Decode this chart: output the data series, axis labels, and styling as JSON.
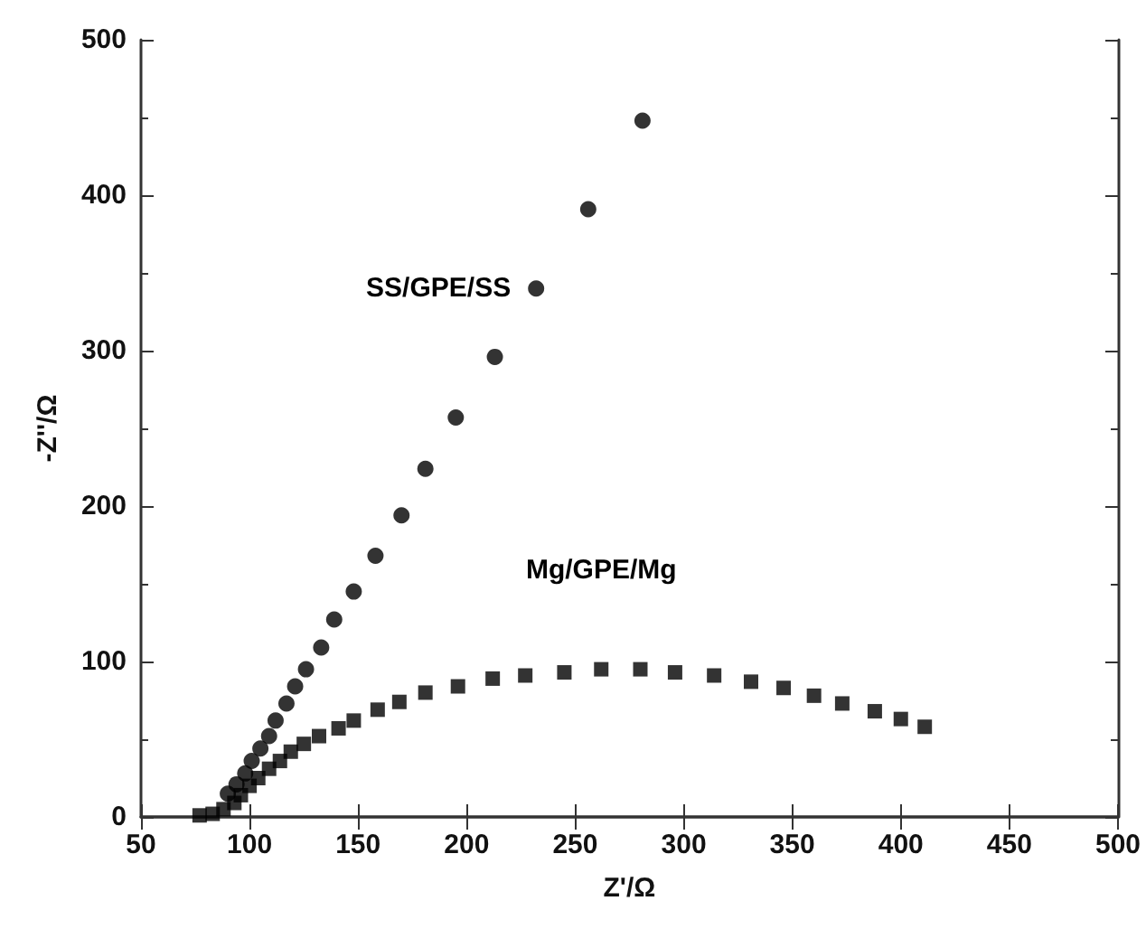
{
  "chart_data": {
    "type": "scatter",
    "xlabel": "Z'/Ω",
    "ylabel": "-Z''/Ω",
    "xlim": [
      50,
      500
    ],
    "xticks": [
      50,
      100,
      150,
      200,
      250,
      300,
      350,
      400,
      450,
      500
    ],
    "ylim": [
      0,
      500
    ],
    "yticks": [
      0,
      100,
      200,
      300,
      400,
      500
    ],
    "grid": false,
    "legend": false,
    "series": [
      {
        "name": "SS/GPE/SS",
        "color": "#000000",
        "marker": "circle",
        "x": [
          90,
          94,
          98,
          101,
          105,
          109,
          112,
          117,
          121,
          126,
          133,
          139,
          148,
          158,
          170,
          181,
          195,
          213,
          232,
          256,
          281
        ],
        "values": [
          15,
          21,
          28,
          36,
          44,
          52,
          62,
          73,
          84,
          95,
          109,
          127,
          145,
          168,
          194,
          224,
          257,
          296,
          340,
          391,
          448
        ]
      },
      {
        "name": "Mg/GPE/Mg",
        "color": "#000000",
        "marker": "square",
        "x": [
          77,
          83,
          88,
          93,
          96,
          100,
          104,
          109,
          114,
          119,
          125,
          132,
          141,
          148,
          159,
          169,
          181,
          196,
          212,
          227,
          245,
          262,
          280,
          296,
          314,
          331,
          346,
          360,
          373,
          388,
          400,
          411
        ],
        "values": [
          1,
          2,
          5,
          9,
          14,
          20,
          25,
          31,
          36,
          42,
          47,
          52,
          57,
          62,
          69,
          74,
          80,
          84,
          89,
          91,
          93,
          95,
          95,
          93,
          91,
          87,
          83,
          78,
          73,
          68,
          63,
          58
        ]
      }
    ]
  }
}
